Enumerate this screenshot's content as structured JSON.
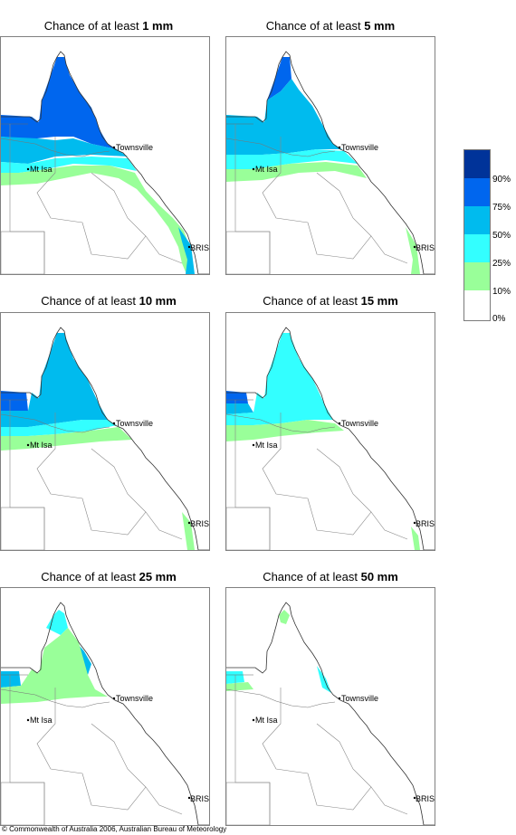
{
  "panels": [
    {
      "prefix": "Chance of at least",
      "amount": "1 mm"
    },
    {
      "prefix": "Chance of at least",
      "amount": "5 mm"
    },
    {
      "prefix": "Chance of at least",
      "amount": "10 mm"
    },
    {
      "prefix": "Chance of at least",
      "amount": "15 mm"
    },
    {
      "prefix": "Chance of at least",
      "amount": "25 mm"
    },
    {
      "prefix": "Chance of at least",
      "amount": "50 mm"
    }
  ],
  "places": {
    "townsville": "Townsville",
    "mt_isa": "Mt Isa",
    "brisbane": "BRIS"
  },
  "legend": {
    "labels": [
      "90%",
      "75%",
      "50%",
      "25%",
      "10%",
      "0%"
    ],
    "colors": [
      "#003399",
      "#0066ee",
      "#00bbee",
      "#33ffff",
      "#99ff99",
      "#ffffff"
    ]
  },
  "copyright": "© Commonwealth of Australia 2006, Australian Bureau of Meteorology"
}
